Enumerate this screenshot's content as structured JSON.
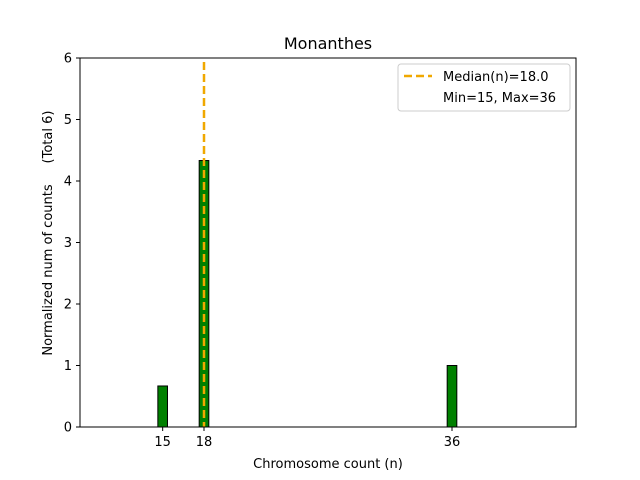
{
  "chart_data": {
    "type": "bar",
    "title": "Monanthes",
    "xlabel": "Chromosome count (n)",
    "ylabel": "Normalized num of counts",
    "ylabel_note": "(Total 6)",
    "x": [
      15,
      18,
      36
    ],
    "values": [
      0.667,
      4.333,
      1.0
    ],
    "xticks": [
      "15",
      "18",
      "36"
    ],
    "yticks": [
      "0",
      "1",
      "2",
      "3",
      "4",
      "5",
      "6"
    ],
    "xlim": [
      9,
      45
    ],
    "ylim": [
      0,
      6
    ],
    "grid": false,
    "bar_color": "#008000",
    "bar_edge_color": "#000000",
    "median": {
      "x": 18.0,
      "color": "#f0a800"
    },
    "legend": {
      "placement": "top-right",
      "entries": [
        "Median(n)=18.0",
        "Min=15, Max=36"
      ]
    }
  }
}
